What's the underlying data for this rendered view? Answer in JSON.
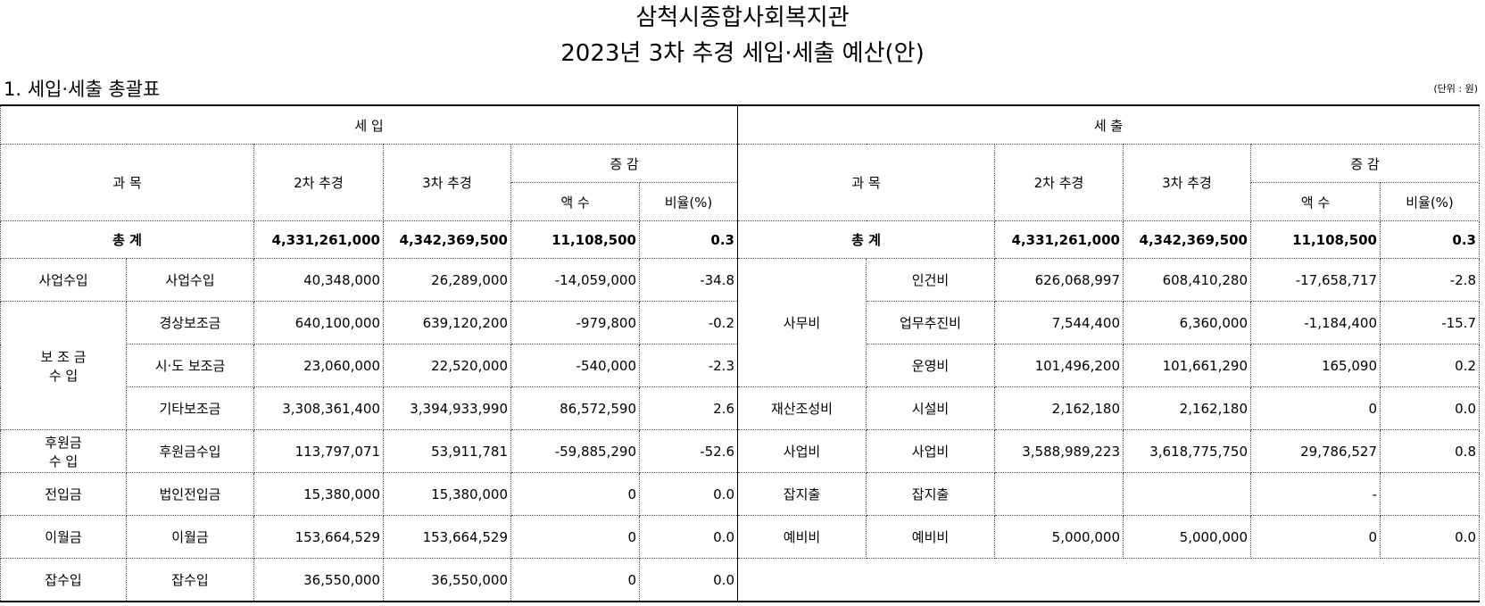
{
  "header": {
    "title_lines": [
      "삼척시종합사회복지관",
      "2023년 3차 추경 세입·세출 예산(안)"
    ]
  },
  "section": {
    "title": "1. 세입·세출 총괄표",
    "unit": "(단위 : 원)"
  },
  "table": {
    "income": {
      "label": "세     입",
      "subject": "과 목",
      "prev": "2차 추경",
      "curr": "3차 추경",
      "change": "증 감",
      "amount": "액 수",
      "ratio": "비율(%)",
      "total": [
        "총 계",
        "4,331,261,000",
        "4,342,369,500",
        "11,108,500",
        "0.3"
      ],
      "groups": [
        {
          "name": "사업수입",
          "items": [
            [
              "사업수입",
              "40,348,000",
              "26,289,000",
              "-14,059,000",
              "-34.8"
            ]
          ]
        },
        {
          "name": "보 조 금\n수     입",
          "items": [
            [
              "경상보조금",
              "640,100,000",
              "639,120,200",
              "-979,800",
              "-0.2"
            ],
            [
              "시·도 보조금",
              "23,060,000",
              "22,520,000",
              "-540,000",
              "-2.3"
            ],
            [
              "기타보조금",
              "3,308,361,400",
              "3,394,933,990",
              "86,572,590",
              "2.6"
            ]
          ]
        },
        {
          "name": "후원금\n수  입",
          "items": [
            [
              "후원금수입",
              "113,797,071",
              "53,911,781",
              "-59,885,290",
              "-52.6"
            ]
          ]
        },
        {
          "name": "전입금",
          "items": [
            [
              "법인전입금",
              "15,380,000",
              "15,380,000",
              "0",
              "0.0"
            ]
          ]
        },
        {
          "name": "이월금",
          "items": [
            [
              "이월금",
              "153,664,529",
              "153,664,529",
              "0",
              "0.0"
            ]
          ]
        },
        {
          "name": "잡수입",
          "items": [
            [
              "잡수입",
              "36,550,000",
              "36,550,000",
              "0",
              "0.0"
            ]
          ]
        }
      ]
    },
    "expense": {
      "label": "세     출",
      "subject": "과 목",
      "prev": "2차 추경",
      "curr": "3차 추경",
      "change": "증 감",
      "amount": "액 수",
      "ratio": "비율(%)",
      "total": [
        "총 계",
        "4,331,261,000",
        "4,342,369,500",
        "11,108,500",
        "0.3"
      ],
      "groups": [
        {
          "name": "사무비",
          "items": [
            [
              "인건비",
              "626,068,997",
              "608,410,280",
              "-17,658,717",
              "-2.8"
            ],
            [
              "업무추진비",
              "7,544,400",
              "6,360,000",
              "-1,184,400",
              "-15.7"
            ],
            [
              "운영비",
              "101,496,200",
              "101,661,290",
              "165,090",
              "0.2"
            ]
          ]
        },
        {
          "name": "재산조성비",
          "items": [
            [
              "시설비",
              "2,162,180",
              "2,162,180",
              "0",
              "0.0"
            ]
          ]
        },
        {
          "name": "사업비",
          "items": [
            [
              "사업비",
              "3,588,989,223",
              "3,618,775,750",
              "29,786,527",
              "0.8"
            ]
          ]
        },
        {
          "name": "잡지출",
          "items": [
            [
              "잡지출",
              null,
              null,
              "-",
              null
            ]
          ]
        },
        {
          "name": "예비비",
          "items": [
            [
              "예비비",
              "5,000,000",
              "5,000,000",
              "0",
              "0.0"
            ]
          ]
        }
      ]
    }
  }
}
